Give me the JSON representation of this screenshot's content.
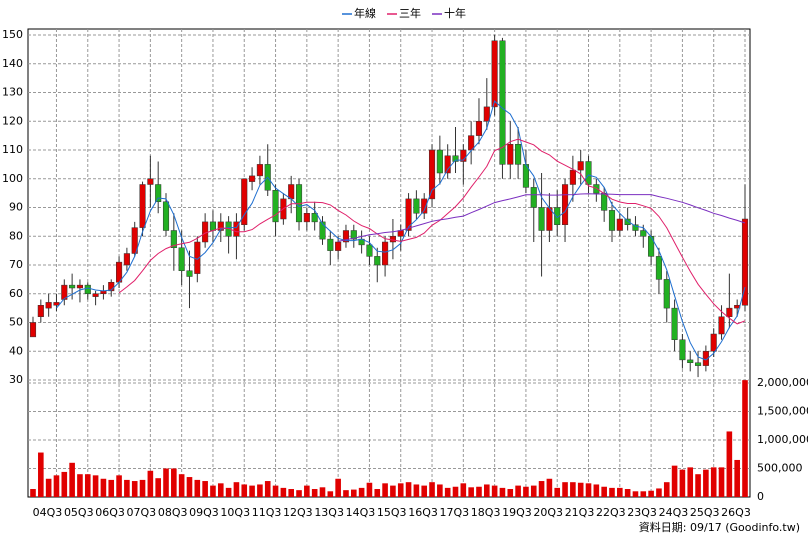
{
  "chart_data": {
    "type": "candlestick",
    "legend_position": "top",
    "footer": "資料日期: 09/17  (Goodinfo.tw)",
    "categories": [
      null,
      null,
      null,
      "04Q3",
      null,
      null,
      null,
      "05Q3",
      null,
      null,
      null,
      "06Q3",
      null,
      null,
      null,
      "07Q3",
      null,
      null,
      null,
      "08Q3",
      null,
      null,
      null,
      "09Q3",
      null,
      null,
      null,
      "10Q3",
      null,
      null,
      null,
      "11Q3",
      null,
      null,
      null,
      "12Q3",
      null,
      null,
      null,
      "13Q3",
      null,
      null,
      null,
      "14Q3",
      null,
      null,
      null,
      "15Q3",
      null,
      null,
      null,
      "16Q3",
      null,
      null,
      null,
      "17Q3",
      null,
      null,
      null,
      "18Q3",
      null,
      null,
      null,
      "19Q3",
      null,
      null,
      null,
      "20Q3",
      null,
      null,
      null,
      "21Q3",
      null,
      null,
      null,
      "22Q3",
      null,
      null,
      null,
      "23Q3",
      null,
      null,
      null,
      "24Q3",
      null,
      null,
      null,
      "25Q3",
      null,
      null,
      null,
      "26Q3"
    ],
    "grid": true,
    "up_color": "#e00000",
    "down_color": "#22b022",
    "ylim": [
      30,
      150
    ],
    "yticks": [
      30,
      40,
      50,
      60,
      70,
      80,
      90,
      100,
      110,
      120,
      130,
      140,
      150
    ],
    "ohlc": {
      "open": [
        45,
        52,
        55,
        56,
        58,
        63,
        62,
        63,
        59,
        60,
        61,
        64,
        70,
        74,
        83,
        98,
        98,
        92,
        82,
        76,
        68,
        67,
        78,
        85,
        82,
        85,
        80,
        84,
        99,
        101,
        105,
        96,
        86,
        93,
        98,
        85,
        88,
        85,
        79,
        75,
        78,
        82,
        79,
        77,
        73,
        70,
        78,
        80,
        82,
        93,
        88,
        93,
        110,
        102,
        108,
        106,
        110,
        115,
        120,
        125,
        148,
        105,
        112,
        105,
        97,
        90,
        82,
        90,
        84,
        98,
        103,
        106,
        98,
        95,
        89,
        82,
        86,
        84,
        82,
        80,
        73,
        65,
        55,
        44,
        37,
        36,
        35,
        40,
        46,
        52,
        55,
        56
      ],
      "high": [
        52,
        58,
        60,
        60,
        65,
        67,
        65,
        64,
        61,
        63,
        65,
        73,
        76,
        85,
        99,
        108,
        106,
        95,
        88,
        82,
        75,
        80,
        88,
        89,
        88,
        87,
        88,
        100,
        104,
        108,
        112,
        98,
        95,
        101,
        100,
        90,
        92,
        87,
        82,
        80,
        84,
        84,
        82,
        80,
        76,
        80,
        86,
        84,
        95,
        96,
        95,
        112,
        115,
        112,
        118,
        112,
        120,
        128,
        135,
        150,
        149,
        120,
        118,
        110,
        100,
        102,
        95,
        96,
        100,
        108,
        110,
        108,
        100,
        97,
        92,
        88,
        90,
        87,
        84,
        82,
        76,
        68,
        58,
        46,
        40,
        40,
        42,
        48,
        56,
        67,
        58,
        98
      ],
      "low": [
        45,
        50,
        52,
        54,
        56,
        58,
        57,
        58,
        56,
        58,
        59,
        62,
        68,
        73,
        80,
        90,
        88,
        80,
        68,
        63,
        55,
        64,
        76,
        78,
        78,
        74,
        72,
        82,
        96,
        98,
        94,
        80,
        84,
        88,
        82,
        82,
        82,
        77,
        70,
        72,
        76,
        76,
        74,
        70,
        64,
        66,
        72,
        75,
        80,
        86,
        86,
        90,
        98,
        100,
        102,
        98,
        105,
        112,
        117,
        122,
        100,
        100,
        100,
        95,
        78,
        66,
        78,
        80,
        78,
        92,
        98,
        95,
        92,
        85,
        78,
        80,
        82,
        80,
        76,
        70,
        60,
        50,
        40,
        34,
        33,
        31,
        33,
        38,
        44,
        48,
        52,
        54
      ],
      "close": [
        50,
        56,
        57,
        57,
        63,
        62,
        63,
        60,
        60,
        61,
        64,
        71,
        74,
        83,
        98,
        100,
        92,
        82,
        76,
        68,
        66,
        78,
        85,
        82,
        85,
        80,
        85,
        100,
        101,
        105,
        96,
        85,
        93,
        98,
        85,
        88,
        85,
        79,
        75,
        78,
        82,
        79,
        77,
        73,
        70,
        78,
        80,
        82,
        93,
        88,
        93,
        110,
        102,
        108,
        106,
        110,
        115,
        120,
        125,
        148,
        105,
        112,
        105,
        97,
        90,
        82,
        90,
        84,
        98,
        103,
        106,
        98,
        95,
        89,
        82,
        86,
        84,
        82,
        80,
        73,
        65,
        55,
        44,
        37,
        36,
        35,
        40,
        46,
        52,
        55,
        56,
        86
      ]
    },
    "series": [
      {
        "name": "年線",
        "color": "#1f6fd0",
        "values": [
          null,
          null,
          null,
          55,
          58.3,
          59.8,
          61.3,
          62,
          61.3,
          61,
          61.3,
          64,
          67.5,
          73,
          81.5,
          88.8,
          93.3,
          93,
          87.5,
          79.5,
          73,
          72,
          74.3,
          77.8,
          82.5,
          83,
          83,
          87.5,
          91.5,
          97.8,
          100.5,
          96.8,
          94.8,
          93,
          90.3,
          91,
          89,
          84.3,
          81.8,
          79.3,
          78.5,
          78.5,
          79,
          77.8,
          74.8,
          74.5,
          75.3,
          77.5,
          83.3,
          85.8,
          89,
          96,
          98.3,
          103.3,
          106.5,
          106.5,
          109.8,
          112.8,
          117.5,
          127,
          124.5,
          122.5,
          117.5,
          104.8,
          101,
          93.5,
          89.8,
          86.5,
          88.5,
          93.8,
          97.8,
          101.3,
          100.5,
          97,
          91,
          88,
          85.3,
          83.5,
          83,
          79.8,
          75,
          68.3,
          59.3,
          50.3,
          43,
          38,
          37,
          39.3,
          43.3,
          48.3,
          52.3,
          62.3
        ]
      },
      {
        "name": "三年",
        "color": "#e0206a",
        "values": [
          null,
          null,
          null,
          null,
          null,
          null,
          null,
          null,
          null,
          null,
          null,
          60.3,
          62.4,
          64.6,
          68,
          71.6,
          74,
          75.7,
          76.8,
          77.4,
          77.9,
          79.3,
          81.1,
          82,
          82.9,
          82.7,
          81.6,
          81.6,
          82.3,
          84.3,
          85.9,
          87.4,
          89.6,
          91.3,
          91.3,
          91.8,
          91.8,
          91.7,
          90.9,
          89,
          87.4,
          85.3,
          83.7,
          82.7,
          80.8,
          79.1,
          78.7,
          78.2,
          78.9,
          79.6,
          81.1,
          83.8,
          85.5,
          87.9,
          90.3,
          93.3,
          97.1,
          100.6,
          104.3,
          109.8,
          110.9,
          112.9,
          113.8,
          112.8,
          111.8,
          109.6,
          108.3,
          106.1,
          104.7,
          103.3,
          101.7,
          97.5,
          96.7,
          94.8,
          92.9,
          91.9,
          91.4,
          91.4,
          90.6,
          89.7,
          86.9,
          82.9,
          77.8,
          72.7,
          67.8,
          63.3,
          59.8,
          56.5,
          53.8,
          51.5,
          49.5,
          50.6
        ]
      },
      {
        "name": "十年",
        "color": "#7b2fc0",
        "values": [
          null,
          null,
          null,
          null,
          null,
          null,
          null,
          null,
          null,
          null,
          null,
          null,
          null,
          null,
          null,
          null,
          null,
          null,
          null,
          null,
          null,
          null,
          null,
          null,
          null,
          null,
          null,
          null,
          null,
          null,
          null,
          null,
          null,
          null,
          null,
          null,
          null,
          null,
          null,
          78.2,
          78.8,
          79.3,
          79.9,
          80.5,
          80.9,
          81.3,
          81.6,
          82,
          82.8,
          83.6,
          84.4,
          85.2,
          85.7,
          86.1,
          86.6,
          87,
          88.2,
          89.3,
          90.5,
          91.7,
          92.4,
          93,
          93.7,
          94.4,
          94.4,
          94.4,
          94.3,
          94.3,
          94.4,
          94.5,
          94.7,
          94.8,
          94.7,
          94.7,
          94.6,
          94.5,
          94.5,
          94.5,
          94.5,
          94.5,
          93.8,
          93.2,
          92.5,
          91.8,
          90.9,
          89.9,
          89,
          88,
          87.2,
          86.3,
          85.5,
          84.6
        ]
      }
    ],
    "volume": {
      "color": "#e00000",
      "ylim": [
        0,
        2000000
      ],
      "yticks": [
        0,
        {
          "value": 500000,
          "label": "500,000"
        },
        {
          "value": 1000000,
          "label": "1,000,000"
        },
        {
          "value": 1500000,
          "label": "1,500,000"
        },
        {
          "value": 2000000,
          "label": "2,000,000"
        }
      ],
      "values": [
        140000,
        780000,
        320000,
        380000,
        440000,
        600000,
        400000,
        400000,
        380000,
        320000,
        300000,
        380000,
        300000,
        280000,
        300000,
        460000,
        330000,
        500000,
        500000,
        400000,
        350000,
        300000,
        280000,
        200000,
        240000,
        160000,
        260000,
        220000,
        200000,
        220000,
        280000,
        200000,
        160000,
        140000,
        120000,
        200000,
        140000,
        170000,
        100000,
        320000,
        120000,
        130000,
        160000,
        250000,
        140000,
        240000,
        200000,
        240000,
        260000,
        220000,
        200000,
        260000,
        220000,
        160000,
        180000,
        240000,
        170000,
        180000,
        220000,
        200000,
        160000,
        140000,
        200000,
        180000,
        200000,
        280000,
        320000,
        160000,
        260000,
        260000,
        250000,
        240000,
        220000,
        180000,
        160000,
        160000,
        140000,
        100000,
        100000,
        110000,
        150000,
        260000,
        550000,
        480000,
        520000,
        400000,
        480000,
        520000,
        520000,
        1150000,
        650000,
        2050000
      ]
    }
  }
}
